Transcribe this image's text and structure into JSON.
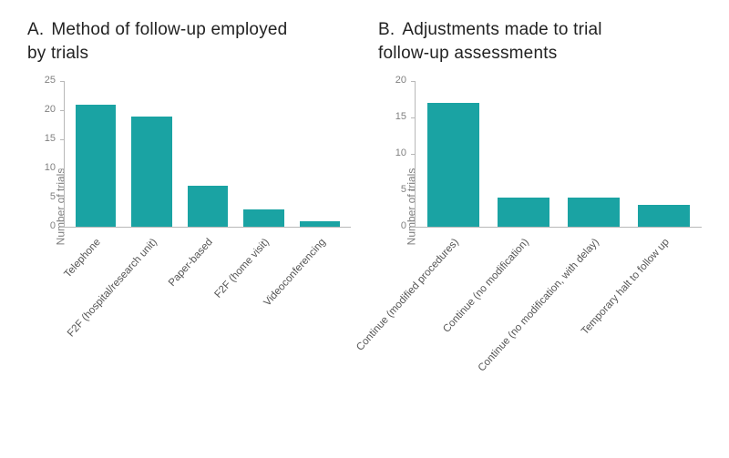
{
  "panelA": {
    "letter": "A.",
    "title_line1": "Method of follow-up employed",
    "title_line2": "by trials",
    "chart": {
      "type": "bar",
      "ylabel": "Number of trials",
      "ylim_max": 25,
      "ytick_step": 5,
      "bar_color": "#1aa3a3",
      "axis_color": "#b8b8b8",
      "tick_label_color": "#808080",
      "xlabel_color": "#555555",
      "title_fontsize": 19,
      "ylabel_fontsize": 12,
      "tick_fontsize": 11,
      "xlabel_fontsize": 11.5,
      "categories": [
        "Telephone",
        "F2F (hospital/research unit)",
        "Paper-based",
        "F2F (home visit)",
        "Videoconferencing"
      ],
      "values": [
        21,
        19,
        7,
        3,
        1
      ]
    }
  },
  "panelB": {
    "letter": "B.",
    "title_line1": "Adjustments made to trial",
    "title_line2": "follow-up assessments",
    "chart": {
      "type": "bar",
      "ylabel": "Number of trials",
      "ylim_max": 20,
      "ytick_step": 5,
      "bar_color": "#1aa3a3",
      "axis_color": "#b8b8b8",
      "tick_label_color": "#808080",
      "xlabel_color": "#555555",
      "title_fontsize": 19,
      "ylabel_fontsize": 12,
      "tick_fontsize": 11,
      "xlabel_fontsize": 11.5,
      "categories": [
        "Continue (modified procedures)",
        "Continue (no modification)",
        "Continue (no modification, with delay)",
        "Temporary halt to follow up"
      ],
      "values": [
        17,
        4,
        4,
        3
      ]
    }
  }
}
